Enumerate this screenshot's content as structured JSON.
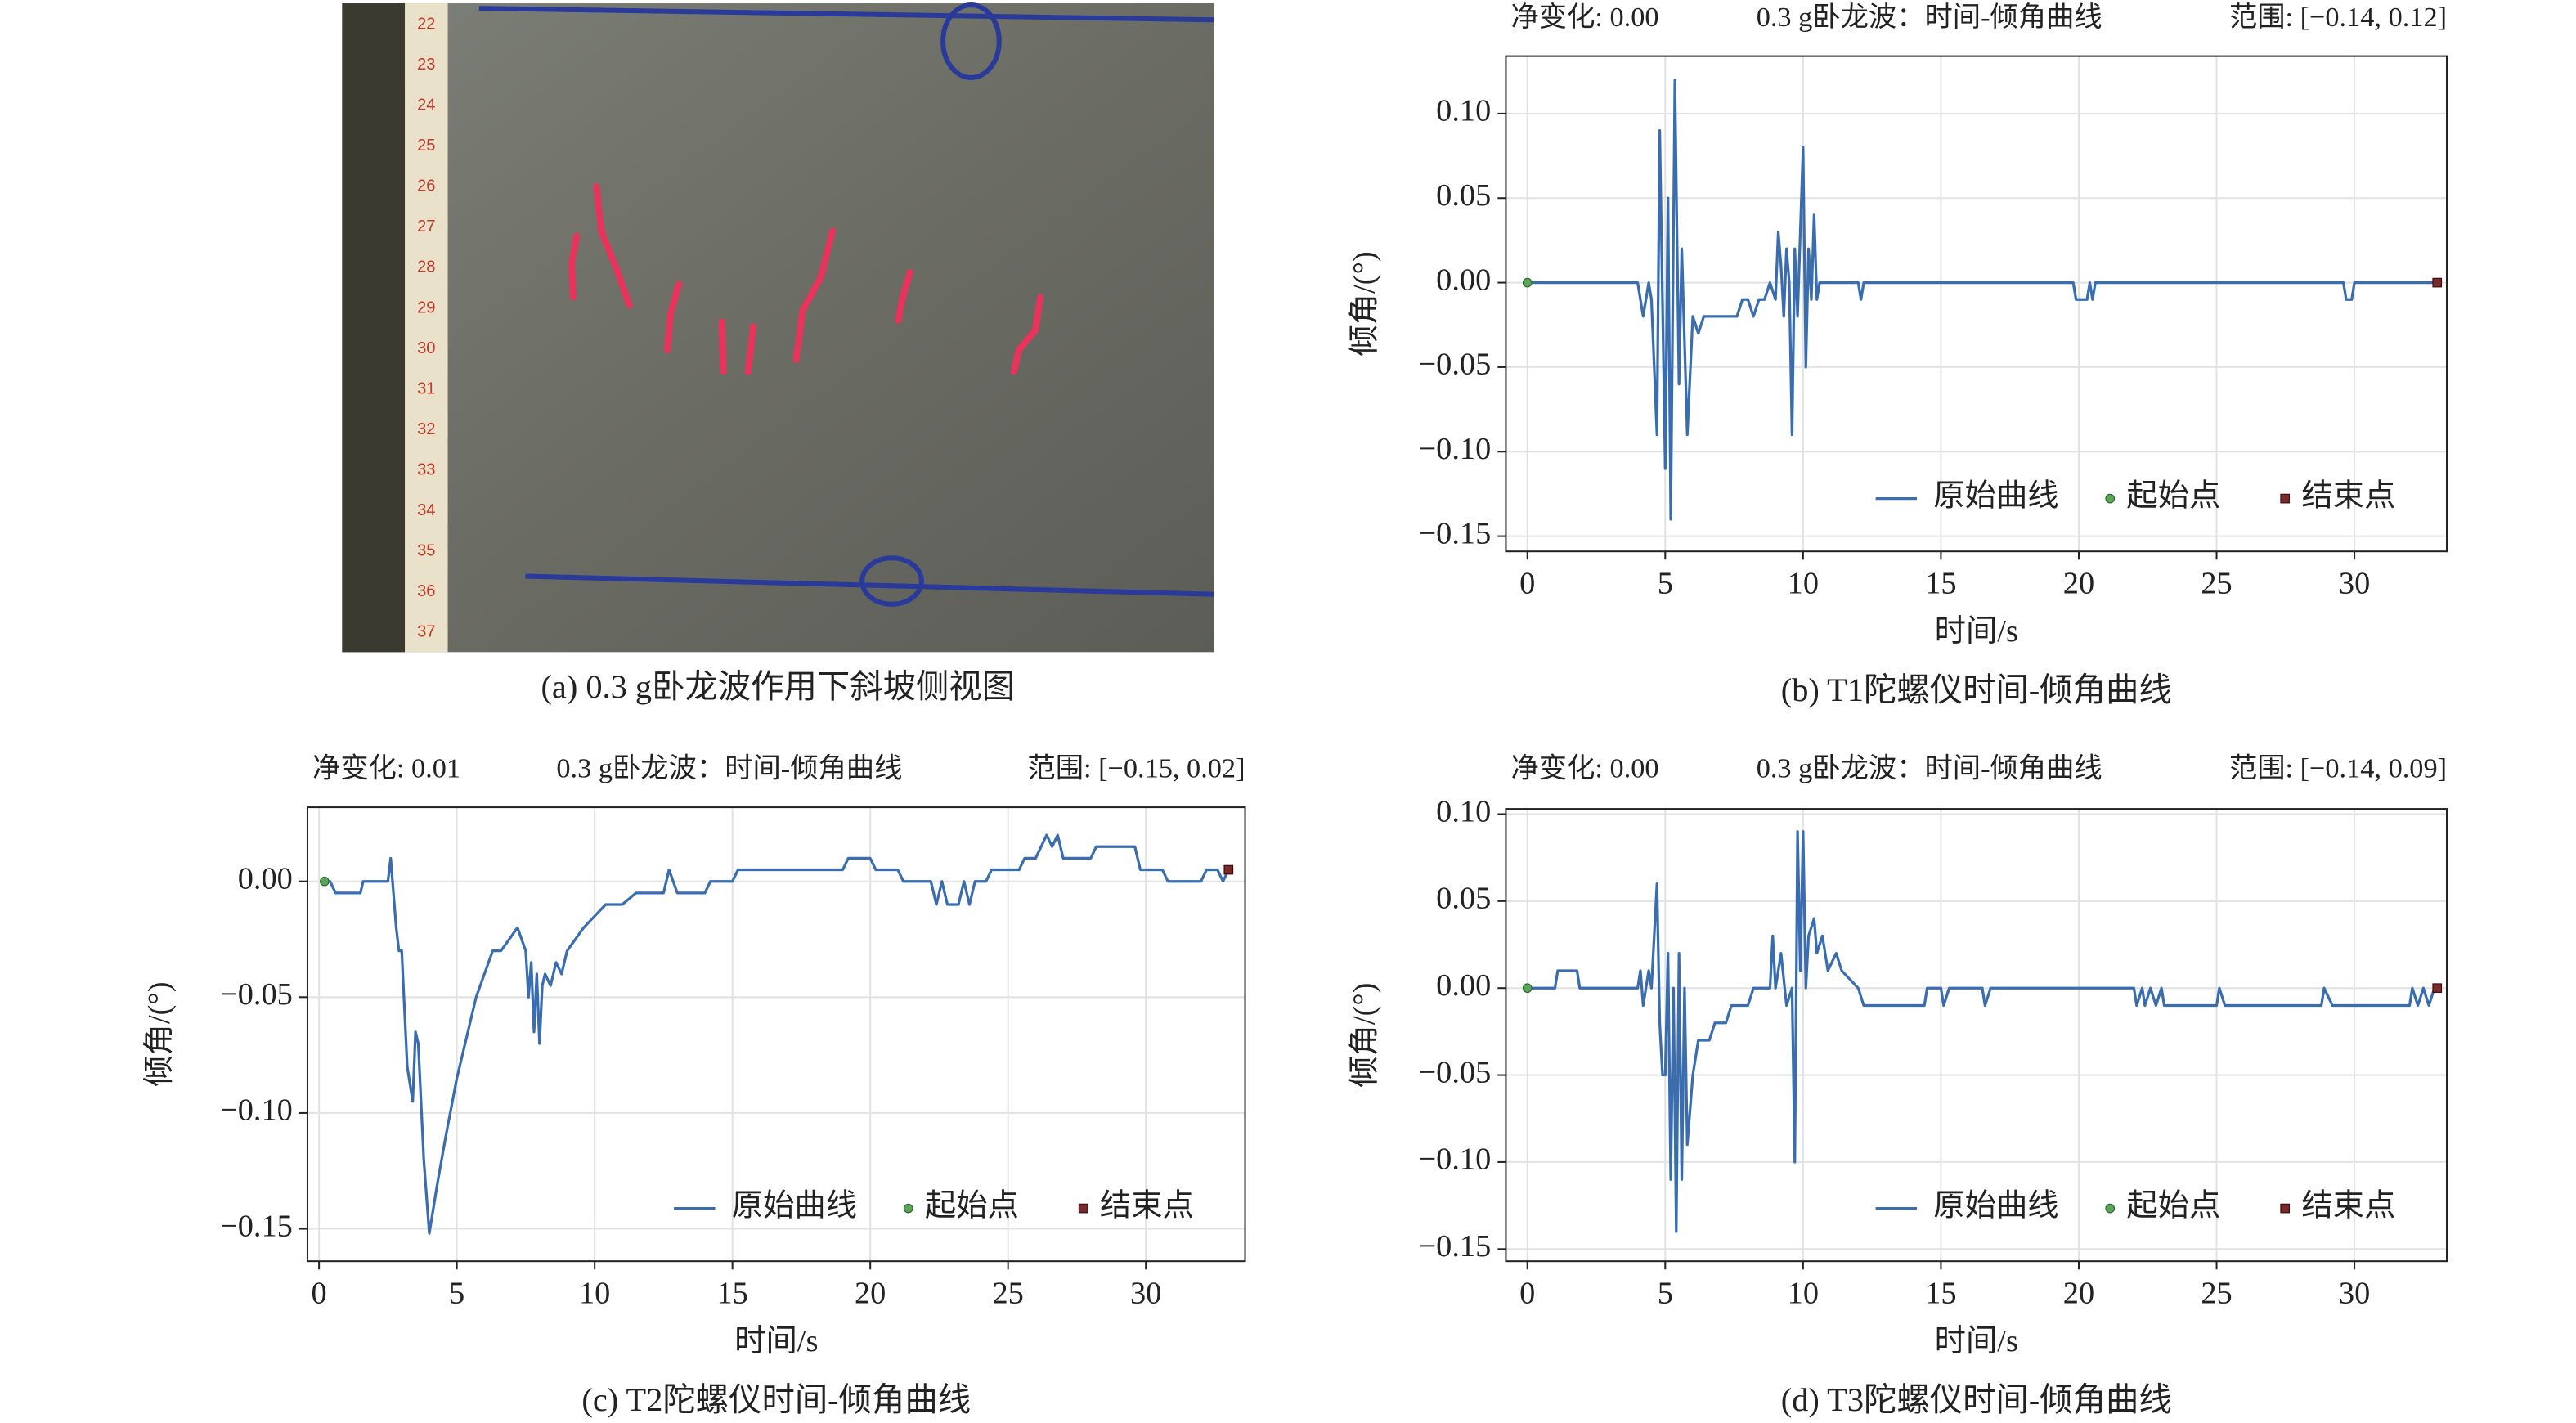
{
  "photo": {
    "caption": "(a) 0.3 g卧龙波作用下斜坡侧视图",
    "ruler_labels": [
      22,
      23,
      24,
      25,
      26,
      27,
      28,
      29,
      30,
      31,
      32,
      33,
      34,
      35,
      36,
      37
    ]
  },
  "chart_data": [
    {
      "type": "line",
      "net_change_label": "净变化: 0.00",
      "title": "0.3 g卧龙波：时间-倾角曲线",
      "range_label": "范围: [−0.14, 0.12]",
      "caption": "(b) T1陀螺仪时间-倾角曲线",
      "xlabel": "时间/s",
      "ylabel": "倾角/(°)",
      "xlim": [
        -0.78,
        33.35
      ],
      "ylim": [
        -0.159,
        0.134
      ],
      "xticks": [
        0,
        5,
        10,
        15,
        20,
        25,
        30
      ],
      "yticks": [
        {
          "value": -0.15,
          "label": "−0.15"
        },
        {
          "value": -0.1,
          "label": "−0.10"
        },
        {
          "value": -0.05,
          "label": "−0.05"
        },
        {
          "value": 0,
          "label": "0.00"
        },
        {
          "value": 0.05,
          "label": "0.05"
        },
        {
          "value": 0.1,
          "label": "0.10"
        }
      ],
      "grid": true,
      "legend": "lower right",
      "series": [
        {
          "name": "原始曲线",
          "color": "#3a6db0",
          "marker": "line",
          "x": [
            0,
            4.0,
            4.2,
            4.4,
            4.5,
            4.7,
            4.8,
            5.0,
            5.1,
            5.2,
            5.35,
            5.5,
            5.6,
            5.8,
            6.0,
            6.2,
            6.4,
            7.6,
            7.8,
            8.0,
            8.2,
            8.4,
            8.6,
            8.8,
            9.0,
            9.1,
            9.2,
            9.3,
            9.4,
            9.5,
            9.6,
            9.7,
            9.8,
            10.0,
            10.1,
            10.2,
            10.3,
            10.4,
            10.5,
            10.6,
            12.0,
            12.1,
            12.2,
            19.8,
            19.9,
            20.3,
            20.4,
            20.5,
            20.6,
            29.6,
            29.7,
            29.9,
            30.0,
            33.0
          ],
          "values": [
            0,
            0,
            -0.02,
            0,
            -0.01,
            -0.09,
            0.09,
            -0.11,
            0.05,
            -0.14,
            0.12,
            -0.06,
            0.02,
            -0.09,
            -0.02,
            -0.03,
            -0.02,
            -0.02,
            -0.01,
            -0.01,
            -0.02,
            -0.01,
            -0.01,
            0,
            -0.01,
            0.03,
            0.01,
            -0.02,
            0.02,
            0,
            -0.09,
            0.02,
            -0.02,
            0.08,
            -0.05,
            0.02,
            -0.01,
            0.04,
            -0.01,
            0,
            0,
            -0.01,
            0,
            0,
            -0.01,
            -0.01,
            0,
            -0.01,
            0,
            0,
            -0.01,
            -0.01,
            0,
            0
          ]
        },
        {
          "name": "起始点",
          "color": "#5aa55a",
          "marker": "circle",
          "x": [
            0
          ],
          "values": [
            0
          ]
        },
        {
          "name": "结束点",
          "color": "#7a2a2a",
          "marker": "square",
          "x": [
            33.0
          ],
          "values": [
            0
          ]
        }
      ]
    },
    {
      "type": "line",
      "net_change_label": "净变化: 0.01",
      "title": "0.3 g卧龙波：时间-倾角曲线",
      "range_label": "范围: [−0.15, 0.02]",
      "caption": "(c) T2陀螺仪时间-倾角曲线",
      "xlabel": "时间/s",
      "ylabel": "倾角/(°)",
      "xlim": [
        -0.42,
        33.6
      ],
      "ylim": [
        -0.164,
        0.032
      ],
      "xticks": [
        0,
        5,
        10,
        15,
        20,
        25,
        30
      ],
      "yticks": [
        {
          "value": -0.15,
          "label": "−0.15"
        },
        {
          "value": -0.1,
          "label": "−0.10"
        },
        {
          "value": -0.05,
          "label": "−0.05"
        },
        {
          "value": 0,
          "label": "0.00"
        }
      ],
      "grid": true,
      "legend": "lower right",
      "series": [
        {
          "name": "原始曲线",
          "color": "#3a6db0",
          "marker": "line",
          "x": [
            0.2,
            0.4,
            0.6,
            1.5,
            1.6,
            2.5,
            2.6,
            2.8,
            2.9,
            3.0,
            3.2,
            3.4,
            3.5,
            3.6,
            3.8,
            4.0,
            4.3,
            4.6,
            5.0,
            5.4,
            5.7,
            6.0,
            6.3,
            6.6,
            6.9,
            7.2,
            7.5,
            7.6,
            7.7,
            7.8,
            7.9,
            8.0,
            8.1,
            8.2,
            8.4,
            8.6,
            8.8,
            9.0,
            9.3,
            9.6,
            10.0,
            10.4,
            11.0,
            11.5,
            12.5,
            12.7,
            13.0,
            14.0,
            14.2,
            15.0,
            15.2,
            19.0,
            19.2,
            20.0,
            20.2,
            21.0,
            21.2,
            22.2,
            22.4,
            22.6,
            22.8,
            23.2,
            23.4,
            23.6,
            23.8,
            24.2,
            24.4,
            25.4,
            25.6,
            26.0,
            26.2,
            26.4,
            26.6,
            26.8,
            27.0,
            28.0,
            28.2,
            29.6,
            29.8,
            30.6,
            30.8,
            32.0,
            32.2,
            32.6,
            32.8,
            33.0
          ],
          "values": [
            0,
            0,
            -0.005,
            -0.005,
            0,
            0,
            0.01,
            -0.02,
            -0.03,
            -0.03,
            -0.08,
            -0.095,
            -0.065,
            -0.07,
            -0.12,
            -0.152,
            -0.13,
            -0.11,
            -0.085,
            -0.065,
            -0.05,
            -0.04,
            -0.03,
            -0.03,
            -0.025,
            -0.02,
            -0.03,
            -0.05,
            -0.035,
            -0.065,
            -0.04,
            -0.07,
            -0.045,
            -0.04,
            -0.045,
            -0.035,
            -0.04,
            -0.03,
            -0.025,
            -0.02,
            -0.015,
            -0.01,
            -0.01,
            -0.005,
            -0.005,
            0.005,
            -0.005,
            -0.005,
            0,
            0,
            0.005,
            0.005,
            0.01,
            0.01,
            0.005,
            0.005,
            0,
            0,
            -0.01,
            0,
            -0.01,
            -0.01,
            0,
            -0.01,
            0,
            0,
            0.005,
            0.005,
            0.01,
            0.01,
            0.015,
            0.02,
            0.015,
            0.02,
            0.01,
            0.01,
            0.015,
            0.015,
            0.005,
            0.005,
            0,
            0,
            0.005,
            0.005,
            0,
            0.005
          ]
        },
        {
          "name": "起始点",
          "color": "#5aa55a",
          "marker": "circle",
          "x": [
            0.2
          ],
          "values": [
            0
          ]
        },
        {
          "name": "结束点",
          "color": "#7a2a2a",
          "marker": "square",
          "x": [
            33.0
          ],
          "values": [
            0.005
          ]
        }
      ]
    },
    {
      "type": "line",
      "net_change_label": "净变化: 0.00",
      "title": "0.3 g卧龙波：时间-倾角曲线",
      "range_label": "范围: [−0.14, 0.09]",
      "caption": "(d) T3陀螺仪时间-倾角曲线",
      "xlabel": "时间/s",
      "ylabel": "倾角/(°)",
      "xlim": [
        -0.78,
        33.35
      ],
      "ylim": [
        -0.157,
        0.103
      ],
      "xticks": [
        0,
        5,
        10,
        15,
        20,
        25,
        30
      ],
      "yticks": [
        {
          "value": -0.15,
          "label": "−0.15"
        },
        {
          "value": -0.1,
          "label": "−0.10"
        },
        {
          "value": -0.05,
          "label": "−0.05"
        },
        {
          "value": 0,
          "label": "0.00"
        },
        {
          "value": 0.05,
          "label": "0.05"
        },
        {
          "value": 0.1,
          "label": "0.10"
        }
      ],
      "grid": true,
      "legend": "lower right",
      "series": [
        {
          "name": "原始曲线",
          "color": "#3a6db0",
          "marker": "line",
          "x": [
            0,
            1.0,
            1.1,
            1.8,
            1.9,
            4.0,
            4.1,
            4.2,
            4.4,
            4.5,
            4.6,
            4.7,
            4.8,
            4.9,
            5.0,
            5.1,
            5.2,
            5.3,
            5.4,
            5.5,
            5.6,
            5.7,
            5.8,
            6.0,
            6.2,
            6.6,
            6.8,
            7.2,
            7.4,
            8.0,
            8.2,
            8.8,
            8.9,
            9.0,
            9.2,
            9.4,
            9.6,
            9.7,
            9.8,
            9.9,
            10.0,
            10.1,
            10.2,
            10.4,
            10.5,
            10.7,
            10.9,
            11.2,
            11.4,
            12.0,
            12.2,
            14.4,
            14.5,
            15.0,
            15.1,
            15.3,
            16.5,
            16.6,
            16.8,
            22.0,
            22.1,
            22.3,
            22.4,
            22.6,
            22.8,
            23.0,
            23.1,
            25.0,
            25.1,
            25.3,
            28.8,
            28.9,
            29.2,
            32.0,
            32.1,
            32.3,
            32.5,
            32.7,
            32.9,
            33.0
          ],
          "values": [
            0,
            0,
            0.01,
            0.01,
            0,
            0,
            0.01,
            -0.01,
            0.01,
            0,
            0.03,
            0.06,
            -0.02,
            -0.05,
            -0.05,
            0.02,
            -0.11,
            0,
            -0.14,
            0.02,
            -0.11,
            0,
            -0.09,
            -0.05,
            -0.03,
            -0.03,
            -0.02,
            -0.02,
            -0.01,
            -0.01,
            0,
            0,
            0.03,
            0,
            0.02,
            -0.01,
            0,
            -0.1,
            0.09,
            0.01,
            0.09,
            0,
            0.03,
            0.04,
            0.02,
            0.03,
            0.01,
            0.02,
            0.01,
            0,
            -0.01,
            -0.01,
            0,
            0,
            -0.01,
            0,
            0,
            -0.01,
            0,
            0,
            -0.01,
            0,
            -0.01,
            0,
            -0.01,
            0,
            -0.01,
            -0.01,
            0,
            -0.01,
            -0.01,
            0,
            -0.01,
            -0.01,
            0,
            -0.01,
            0,
            -0.01,
            0,
            0
          ]
        },
        {
          "name": "起始点",
          "color": "#5aa55a",
          "marker": "circle",
          "x": [
            0
          ],
          "values": [
            0
          ]
        },
        {
          "name": "结束点",
          "color": "#7a2a2a",
          "marker": "square",
          "x": [
            33.0
          ],
          "values": [
            0
          ]
        }
      ]
    }
  ]
}
